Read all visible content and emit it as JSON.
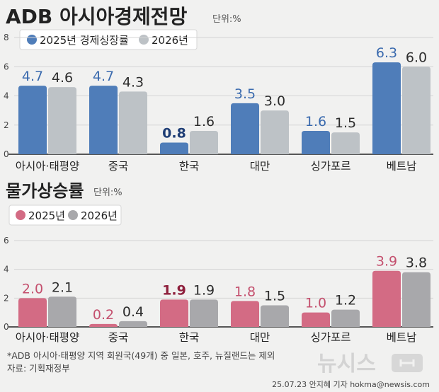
{
  "header": {
    "title": "ADB 아시아경제전망",
    "unit": "단위:%"
  },
  "charts": [
    {
      "title": "",
      "unit": "",
      "chart_data": {
        "type": "bar",
        "categories": [
          "아시아·태평양",
          "중국",
          "한국",
          "대만",
          "싱가포르",
          "베트남"
        ],
        "series": [
          {
            "name": "2025년 경제성장률",
            "values": [
              4.7,
              4.7,
              0.8,
              3.5,
              1.6,
              6.3
            ]
          },
          {
            "name": "2026년",
            "values": [
              4.6,
              4.3,
              1.6,
              3.0,
              1.5,
              6.0
            ]
          }
        ],
        "yticks": [
          "0",
          "2",
          "4",
          "6",
          "8"
        ],
        "ylim": [
          0,
          8
        ],
        "colors": [
          "#4f7db9",
          "#bdc2c6"
        ],
        "label_colors": [
          "#3a6aae",
          "#2d2d2d"
        ],
        "highlight_label_color": "#1e3d75",
        "highlight_index": 2
      }
    },
    {
      "title": "물가상승률",
      "unit": "단위:%",
      "chart_data": {
        "type": "bar",
        "categories": [
          "아시아·태평양",
          "중국",
          "한국",
          "대만",
          "싱가포르",
          "베트남"
        ],
        "series": [
          {
            "name": "2025년",
            "values": [
              2.0,
              0.2,
              1.9,
              1.8,
              1.0,
              3.9
            ]
          },
          {
            "name": "2026년",
            "values": [
              2.1,
              0.4,
              1.9,
              1.5,
              1.2,
              3.8
            ]
          }
        ],
        "yticks": [
          "0",
          "2",
          "4",
          "6"
        ],
        "ylim": [
          0,
          6
        ],
        "colors": [
          "#d36b84",
          "#a8a8ab"
        ],
        "label_colors": [
          "#c4506e",
          "#2d2d2d"
        ],
        "highlight_label_color": "#8e1f3c",
        "highlight_index": 2
      }
    }
  ],
  "footer": {
    "note": "*ADB 아시아·태평양 지역 회원국(49개) 중 일본, 호주, 뉴질랜드는 제외",
    "source": "자료: 기획재정부",
    "credit": "25.07.23 안지혜 기자 hokma@newsis.com",
    "watermark": "뉴시스"
  }
}
